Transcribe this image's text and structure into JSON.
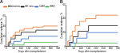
{
  "chart_data": [
    {
      "type": "line",
      "title": "A",
      "x_label": "Days after transplantation",
      "y_label": "Cumulative incidence, %",
      "xlim": [
        0,
        350
      ],
      "xticks": [
        0,
        50,
        100,
        150,
        200,
        250,
        300,
        350
      ],
      "ylim": [
        0,
        60
      ],
      "yticks": [
        0,
        20,
        40,
        60
      ],
      "legend": "top",
      "grid": false,
      "series": [
        {
          "name": "Adenovirus",
          "color": "#e8762d",
          "line_style": "steps",
          "x": [
            0,
            10,
            20,
            30,
            45,
            60,
            90,
            120,
            180,
            250,
            350
          ],
          "values": [
            0,
            5,
            10,
            18,
            22,
            28,
            32,
            35,
            38,
            40,
            40
          ]
        },
        {
          "name": "BK virus",
          "color": "#1a1a1a",
          "line_style": "steps",
          "x": [
            0,
            15,
            30,
            60,
            100,
            200,
            350
          ],
          "values": [
            0,
            8,
            15,
            22,
            28,
            32,
            32
          ]
        },
        {
          "name": "CMV",
          "color": "#3a6fc4",
          "line_style": "steps",
          "x": [
            0,
            20,
            50,
            100,
            150,
            350
          ],
          "values": [
            0,
            5,
            10,
            15,
            20,
            20
          ]
        },
        {
          "name": "EBV",
          "color": "#4caf50",
          "line_style": "steps",
          "x": [
            0,
            40,
            120,
            350
          ],
          "values": [
            0,
            3,
            8,
            8
          ]
        }
      ]
    },
    {
      "type": "line",
      "title": "B",
      "x_label": "Days after transplantation",
      "y_label": "Cumulative incidence, %",
      "xlim": [
        0,
        350
      ],
      "xticks": [
        0,
        50,
        100,
        150,
        200,
        250,
        300,
        350
      ],
      "ylim": [
        0,
        60
      ],
      "yticks": [
        0,
        20,
        40,
        60
      ],
      "grid": false,
      "series": [
        {
          "name": "Adenovirus",
          "color": "#e8762d",
          "line_style": "steps",
          "x": [
            0,
            10,
            25,
            40,
            60,
            90,
            130,
            200,
            350
          ],
          "values": [
            0,
            8,
            15,
            22,
            30,
            36,
            40,
            45,
            45
          ]
        },
        {
          "name": "BK virus",
          "color": "#1a1a1a",
          "line_style": "steps",
          "x": [
            0,
            20,
            45,
            80,
            150,
            350
          ],
          "values": [
            0,
            6,
            14,
            22,
            30,
            30
          ]
        },
        {
          "name": "CMV",
          "color": "#3a6fc4",
          "line_style": "steps",
          "x": [
            0,
            30,
            70,
            140,
            350
          ],
          "values": [
            0,
            5,
            12,
            20,
            20
          ]
        },
        {
          "name": "EBV",
          "color": "#4caf50",
          "line_style": "steps",
          "x": [
            0,
            60,
            350
          ],
          "values": [
            0,
            5,
            5
          ]
        }
      ]
    }
  ]
}
